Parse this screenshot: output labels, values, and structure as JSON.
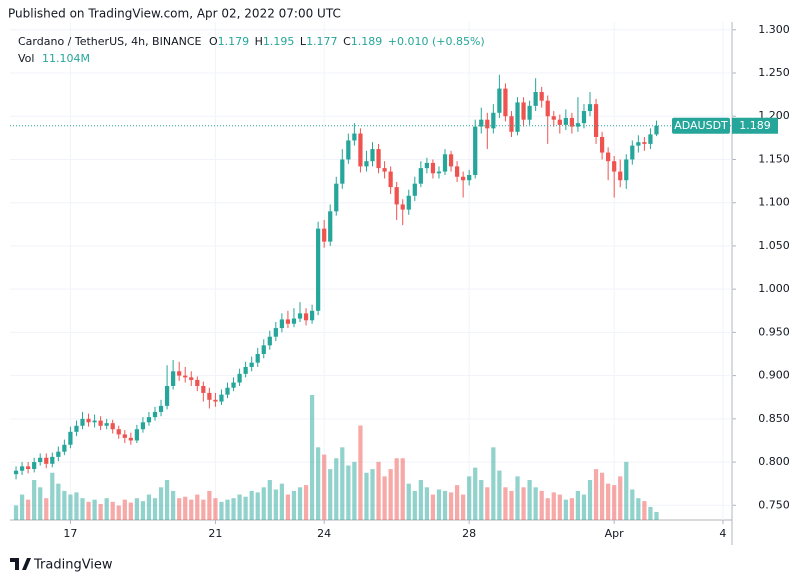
{
  "header": {
    "published": "Published on TradingView.com, Apr 02, 2022 07:00 UTC"
  },
  "footer": {
    "brand": "TradingView"
  },
  "chart_data": {
    "type": "candlestick",
    "title": "Cardano / TetherUS, 4h, BINANCE",
    "ohlc_labels": [
      "O",
      "H",
      "L",
      "C"
    ],
    "change": "+0.010 (+0.85%)",
    "volume_title": "Vol",
    "volume_label": "11.104M",
    "up_color": "#26a69a",
    "down_color": "#ef5350",
    "grid": true,
    "xlim": [
      -1,
      118.5
    ],
    "xticks": [
      {
        "value": 9,
        "label": "17"
      },
      {
        "value": 33,
        "label": "21"
      },
      {
        "value": 51,
        "label": "24"
      },
      {
        "value": 75,
        "label": "28"
      },
      {
        "value": 99,
        "label": "Apr"
      },
      {
        "value": 117,
        "label": "4"
      }
    ],
    "ylim": [
      0.733,
      1.309
    ],
    "yticks": [
      {
        "value": 0.75,
        "label": "0.750"
      },
      {
        "value": 0.8,
        "label": "0.800"
      },
      {
        "value": 0.85,
        "label": "0.850"
      },
      {
        "value": 0.9,
        "label": "0.900"
      },
      {
        "value": 0.95,
        "label": "0.950"
      },
      {
        "value": 1.0,
        "label": "1.000"
      },
      {
        "value": 1.05,
        "label": "1.050"
      },
      {
        "value": 1.1,
        "label": "1.100"
      },
      {
        "value": 1.15,
        "label": "1.150"
      },
      {
        "value": 1.2,
        "label": "1.200"
      },
      {
        "value": 1.25,
        "label": "1.250"
      },
      {
        "value": 1.3,
        "label": "1.300"
      }
    ],
    "series": [
      {
        "name": "ADAUSDT",
        "open": [
          0.786,
          0.79,
          0.795,
          0.792,
          0.8,
          0.805,
          0.798,
          0.806,
          0.812,
          0.82,
          0.835,
          0.842,
          0.85,
          0.846,
          0.848,
          0.842,
          0.845,
          0.838,
          0.832,
          0.828,
          0.825,
          0.838,
          0.846,
          0.852,
          0.858,
          0.865,
          0.888,
          0.905,
          0.9,
          0.898,
          0.895,
          0.888,
          0.88,
          0.872,
          0.87,
          0.878,
          0.886,
          0.892,
          0.902,
          0.91,
          0.915,
          0.925,
          0.935,
          0.945,
          0.955,
          0.965,
          0.96,
          0.966,
          0.972,
          0.964,
          0.975,
          1.07,
          1.055,
          1.09,
          1.122,
          1.15,
          1.172,
          1.18,
          1.142,
          1.148,
          1.162,
          1.14,
          1.136,
          1.118,
          1.098,
          1.092,
          1.108,
          1.122,
          1.14,
          1.146,
          1.134,
          1.136,
          1.156,
          1.142,
          1.13,
          1.126,
          1.132,
          1.188,
          1.196,
          1.186,
          1.204,
          1.232,
          1.2,
          1.182,
          1.216,
          1.196,
          1.212,
          1.228,
          1.218,
          1.2,
          1.196,
          1.19,
          1.198,
          1.188,
          1.192,
          1.206,
          1.214,
          1.176,
          1.158,
          1.148,
          1.136,
          1.126,
          1.15,
          1.166,
          1.17,
          1.168,
          1.179
        ],
        "high": [
          0.795,
          0.8,
          0.8,
          0.805,
          0.81,
          0.81,
          0.811,
          0.818,
          0.826,
          0.841,
          0.848,
          0.858,
          0.856,
          0.855,
          0.853,
          0.85,
          0.849,
          0.842,
          0.837,
          0.834,
          0.843,
          0.852,
          0.858,
          0.864,
          0.872,
          0.912,
          0.918,
          0.916,
          0.91,
          0.905,
          0.899,
          0.893,
          0.886,
          0.88,
          0.884,
          0.892,
          0.898,
          0.908,
          0.916,
          0.922,
          0.932,
          0.942,
          0.952,
          0.962,
          0.972,
          0.975,
          0.978,
          0.985,
          0.978,
          0.982,
          1.078,
          1.08,
          1.098,
          1.13,
          1.162,
          1.18,
          1.192,
          1.186,
          1.16,
          1.17,
          1.168,
          1.148,
          1.142,
          1.124,
          1.104,
          1.115,
          1.13,
          1.148,
          1.152,
          1.15,
          1.142,
          1.162,
          1.16,
          1.148,
          1.136,
          1.138,
          1.196,
          1.21,
          1.204,
          1.214,
          1.248,
          1.238,
          1.206,
          1.222,
          1.222,
          1.218,
          1.244,
          1.234,
          1.224,
          1.206,
          1.202,
          1.208,
          1.204,
          1.222,
          1.214,
          1.228,
          1.22,
          1.182,
          1.164,
          1.154,
          1.15,
          1.156,
          1.172,
          1.178,
          1.176,
          1.186,
          1.195
        ],
        "low": [
          0.78,
          0.785,
          0.787,
          0.788,
          0.796,
          0.793,
          0.794,
          0.801,
          0.808,
          0.816,
          0.83,
          0.838,
          0.841,
          0.84,
          0.837,
          0.838,
          0.833,
          0.827,
          0.822,
          0.82,
          0.822,
          0.834,
          0.842,
          0.848,
          0.853,
          0.861,
          0.884,
          0.894,
          0.892,
          0.888,
          0.882,
          0.87,
          0.862,
          0.864,
          0.866,
          0.874,
          0.882,
          0.888,
          0.898,
          0.905,
          0.91,
          0.92,
          0.93,
          0.94,
          0.95,
          0.955,
          0.956,
          0.962,
          0.958,
          0.96,
          0.97,
          1.048,
          1.05,
          1.085,
          1.116,
          1.145,
          1.166,
          1.135,
          1.136,
          1.142,
          1.134,
          1.128,
          1.11,
          1.08,
          1.074,
          1.086,
          1.102,
          1.118,
          1.134,
          1.128,
          1.128,
          1.132,
          1.136,
          1.124,
          1.106,
          1.12,
          1.128,
          1.18,
          1.162,
          1.18,
          1.198,
          1.194,
          1.176,
          1.178,
          1.188,
          1.19,
          1.206,
          1.21,
          1.168,
          1.188,
          1.18,
          1.184,
          1.18,
          1.182,
          1.186,
          1.2,
          1.168,
          1.15,
          1.126,
          1.106,
          1.118,
          1.116,
          1.144,
          1.158,
          1.16,
          1.162,
          1.177
        ],
        "close": [
          0.79,
          0.795,
          0.792,
          0.8,
          0.805,
          0.798,
          0.806,
          0.812,
          0.82,
          0.835,
          0.842,
          0.85,
          0.846,
          0.848,
          0.842,
          0.845,
          0.838,
          0.832,
          0.828,
          0.825,
          0.838,
          0.846,
          0.852,
          0.858,
          0.865,
          0.888,
          0.905,
          0.9,
          0.898,
          0.895,
          0.888,
          0.88,
          0.872,
          0.87,
          0.878,
          0.886,
          0.892,
          0.902,
          0.91,
          0.915,
          0.925,
          0.935,
          0.945,
          0.955,
          0.965,
          0.96,
          0.966,
          0.972,
          0.964,
          0.975,
          1.07,
          1.055,
          1.09,
          1.122,
          1.15,
          1.172,
          1.18,
          1.142,
          1.148,
          1.162,
          1.14,
          1.136,
          1.118,
          1.098,
          1.092,
          1.108,
          1.122,
          1.14,
          1.146,
          1.134,
          1.136,
          1.156,
          1.142,
          1.13,
          1.126,
          1.132,
          1.188,
          1.196,
          1.186,
          1.204,
          1.232,
          1.2,
          1.182,
          1.216,
          1.196,
          1.212,
          1.228,
          1.218,
          1.2,
          1.196,
          1.19,
          1.198,
          1.188,
          1.192,
          1.206,
          1.214,
          1.176,
          1.158,
          1.148,
          1.136,
          1.126,
          1.15,
          1.166,
          1.17,
          1.168,
          1.179,
          1.189
        ],
        "volume": [
          20,
          35,
          28,
          55,
          45,
          30,
          65,
          50,
          40,
          35,
          38,
          30,
          25,
          28,
          22,
          30,
          25,
          20,
          28,
          24,
          30,
          26,
          35,
          30,
          45,
          55,
          40,
          30,
          32,
          28,
          35,
          28,
          40,
          30,
          25,
          28,
          30,
          35,
          32,
          40,
          38,
          45,
          55,
          42,
          50,
          35,
          40,
          45,
          48,
          172,
          100,
          90,
          70,
          85,
          100,
          75,
          80,
          130,
          65,
          70,
          80,
          60,
          70,
          85,
          85,
          50,
          40,
          55,
          45,
          35,
          42,
          40,
          38,
          48,
          35,
          60,
          72,
          55,
          45,
          100,
          68,
          45,
          40,
          60,
          45,
          55,
          45,
          40,
          30,
          38,
          35,
          28,
          30,
          40,
          35,
          55,
          70,
          65,
          50,
          48,
          60,
          80,
          42,
          30,
          26,
          18,
          11.104
        ]
      }
    ]
  }
}
